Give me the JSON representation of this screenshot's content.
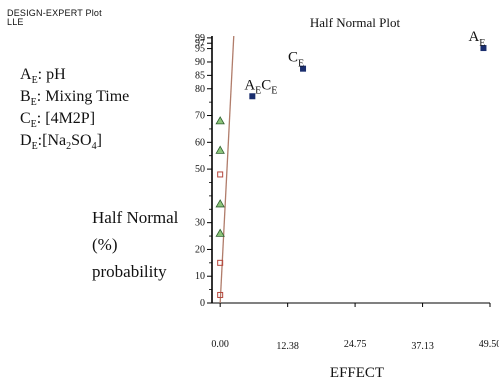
{
  "header": {
    "line1": "DESIGN-EXPERT Plot",
    "line2": "LLE"
  },
  "factors": [
    {
      "letter": "A",
      "sub": "E",
      "sep": ": ",
      "name": "pH"
    },
    {
      "letter": "B",
      "sub": "E",
      "sep": ": ",
      "name": "Mixing  Time"
    },
    {
      "letter": "C",
      "sub": "E",
      "sep": ": ",
      "name": "[4M2P]"
    },
    {
      "letter": "D",
      "sub": "E",
      "sep": ":",
      "name": "[Na2SO4]"
    }
  ],
  "colors": {
    "effect_point": "#1a2e6e",
    "line": "#b07c6a",
    "error_triangle_fill": "#8cc47a",
    "error_triangle_stroke": "#2e5e2e",
    "error_square": "#b5463c",
    "axis": "#000000"
  },
  "chart_data": {
    "type": "scatter",
    "title": "Half Normal Plot",
    "xlabel": "EFFECT",
    "ylabel_lines": [
      "Half Normal",
      "(%)",
      "probability"
    ],
    "x_ticks": [
      0,
      12.38,
      24.75,
      37.13,
      49.5
    ],
    "x_tick_labels": [
      "0.00",
      "12.38",
      "24.75",
      "37.13",
      "49.50"
    ],
    "xlim": [
      -1.5,
      49.5
    ],
    "y_ticks": [
      0,
      10,
      20,
      30,
      50,
      60,
      70,
      80,
      85,
      90,
      95,
      97,
      99
    ],
    "y_tick_labels": [
      "0",
      "10",
      "20",
      "30",
      "50",
      "60",
      "70",
      "80",
      "85",
      "90",
      "95",
      "97",
      "99"
    ],
    "ylim": [
      0,
      99.7
    ],
    "points": [
      {
        "label": "A",
        "sub": "E",
        "x": 48.3,
        "y": 95.2
      },
      {
        "label": "C",
        "sub": "E",
        "x": 15.2,
        "y": 87.5
      },
      {
        "label": "ACE",
        "x": 5.9,
        "y": 77.2
      }
    ],
    "error_points": [
      {
        "marker": "triangle",
        "x": 0.0,
        "y": 68.0
      },
      {
        "marker": "triangle",
        "x": 0.0,
        "y": 57.0
      },
      {
        "marker": "square",
        "x": 0.0,
        "y": 48.0
      },
      {
        "marker": "triangle",
        "x": 0.0,
        "y": 37.0
      },
      {
        "marker": "triangle",
        "x": 0.0,
        "y": 26.0
      },
      {
        "marker": "square",
        "x": 0.0,
        "y": 15.0
      },
      {
        "marker": "square",
        "x": 0.0,
        "y": 3.0
      }
    ],
    "reference_line": {
      "x": [
        0.0,
        2.5
      ],
      "y": [
        0,
        100
      ]
    },
    "grid": false
  }
}
